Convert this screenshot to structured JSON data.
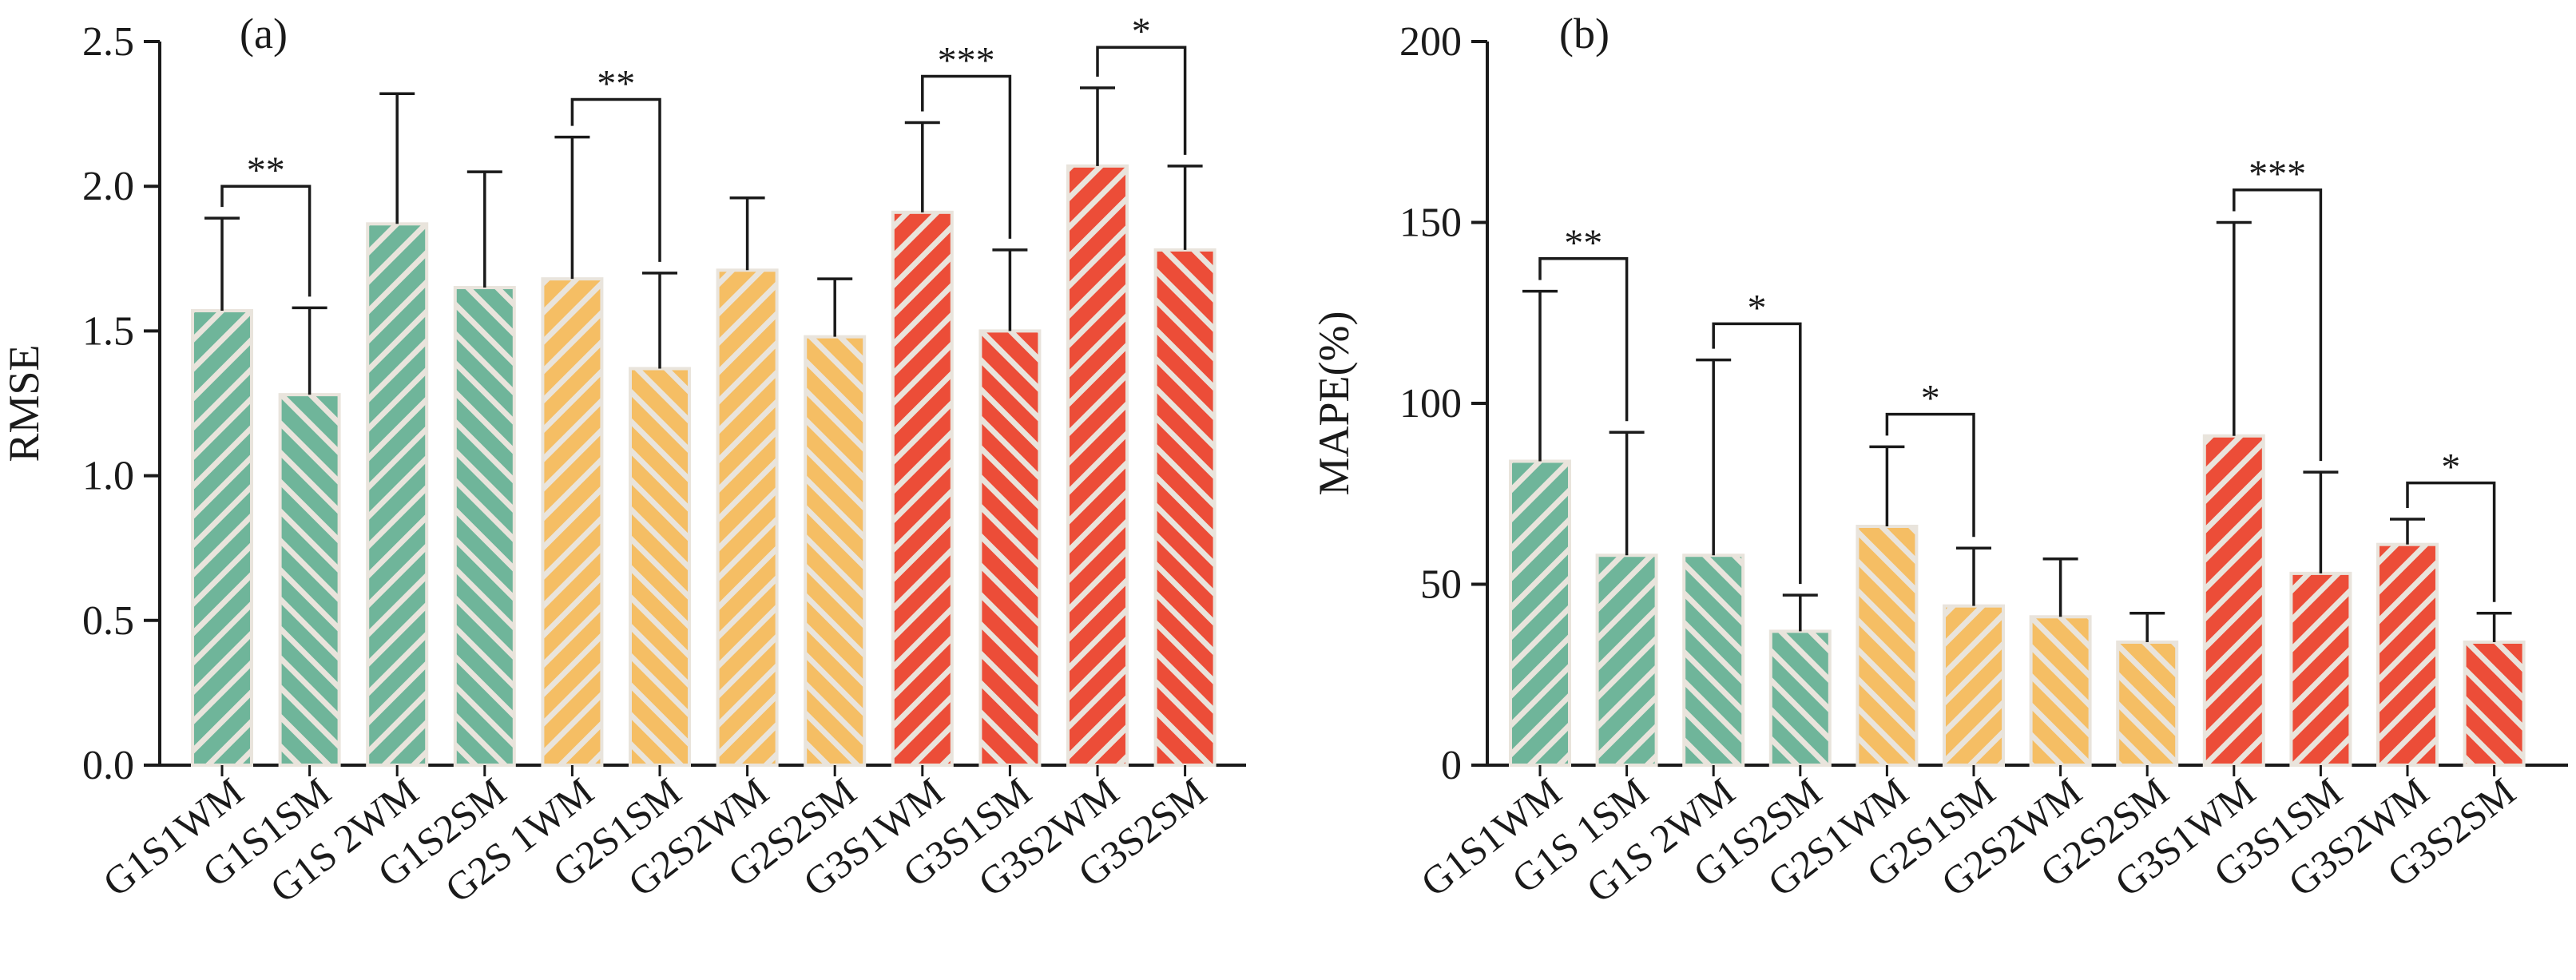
{
  "colors": {
    "green": "#6fb59a",
    "orange": "#f5be64",
    "red": "#ec4d38",
    "stripe": "#e9e4dc",
    "axis": "#1a1a1a"
  },
  "chart_data": [
    {
      "type": "bar",
      "panel_label": "(a)",
      "xlabel": "",
      "ylabel": "RMSE",
      "ylim": [
        0,
        2.5
      ],
      "yticks": [
        "0.0",
        "0.5",
        "1.0",
        "1.5",
        "2.0",
        "2.5"
      ],
      "ytick_values": [
        0,
        0.5,
        1.0,
        1.5,
        2.0,
        2.5
      ],
      "categories": [
        "G1S1WM",
        "G1S1SM",
        "G1S 2WM",
        "G1S2SM",
        "G2S 1WM",
        "G2S1SM",
        "G2S2WM",
        "G2S2SM",
        "G3S1WM",
        "G3S1SM",
        "G3S2WM",
        "G3S2SM"
      ],
      "values": [
        1.57,
        1.28,
        1.87,
        1.65,
        1.68,
        1.37,
        1.71,
        1.48,
        1.91,
        1.5,
        2.07,
        1.78
      ],
      "error": [
        0.32,
        0.3,
        0.45,
        0.4,
        0.49,
        0.33,
        0.25,
        0.2,
        0.31,
        0.28,
        0.27,
        0.29
      ],
      "bar_colors": [
        "green",
        "green",
        "green",
        "green",
        "orange",
        "orange",
        "orange",
        "orange",
        "red",
        "red",
        "red",
        "red"
      ],
      "stripe_dirs": [
        "fwd",
        "back",
        "fwd",
        "back",
        "fwd",
        "back",
        "fwd",
        "back",
        "fwd",
        "back",
        "fwd",
        "back"
      ],
      "grid": false,
      "significance": [
        {
          "from": 0,
          "to": 1,
          "label": "**",
          "y": 2.0
        },
        {
          "from": 4,
          "to": 5,
          "label": "**",
          "y": 2.3
        },
        {
          "from": 8,
          "to": 9,
          "label": "***",
          "y": 2.38
        },
        {
          "from": 10,
          "to": 11,
          "label": "*",
          "y": 2.48
        }
      ]
    },
    {
      "type": "bar",
      "panel_label": "(b)",
      "xlabel": "",
      "ylabel": "MAPE(%)",
      "ylim": [
        0,
        200
      ],
      "yticks": [
        "0",
        "50",
        "100",
        "150",
        "200"
      ],
      "ytick_values": [
        0,
        50,
        100,
        150,
        200
      ],
      "categories": [
        "G1S1WM",
        "G1S 1SM",
        "G1S 2WM",
        "G1S2SM",
        "G2S1WM",
        "G2S1SM",
        "G2S2WM",
        "G2S2SM",
        "G3S1WM",
        "G3S1SM",
        "G3S2WM",
        "G3S2SM"
      ],
      "values": [
        84,
        58,
        58,
        37,
        66,
        44,
        41,
        34,
        91,
        53,
        61,
        34
      ],
      "error": [
        47,
        34,
        54,
        10,
        22,
        16,
        16,
        8,
        59,
        28,
        7,
        8
      ],
      "bar_colors": [
        "green",
        "green",
        "green",
        "green",
        "orange",
        "orange",
        "orange",
        "orange",
        "red",
        "red",
        "red",
        "red"
      ],
      "stripe_dirs": [
        "fwd",
        "fwd",
        "back",
        "back",
        "back",
        "fwd",
        "back",
        "back",
        "fwd",
        "fwd",
        "fwd",
        "back"
      ],
      "grid": false,
      "significance": [
        {
          "from": 0,
          "to": 1,
          "label": "**",
          "y": 140
        },
        {
          "from": 2,
          "to": 3,
          "label": "*",
          "y": 122
        },
        {
          "from": 4,
          "to": 5,
          "label": "*",
          "y": 97
        },
        {
          "from": 8,
          "to": 9,
          "label": "***",
          "y": 159
        },
        {
          "from": 10,
          "to": 11,
          "label": "*",
          "y": 78
        }
      ]
    }
  ]
}
